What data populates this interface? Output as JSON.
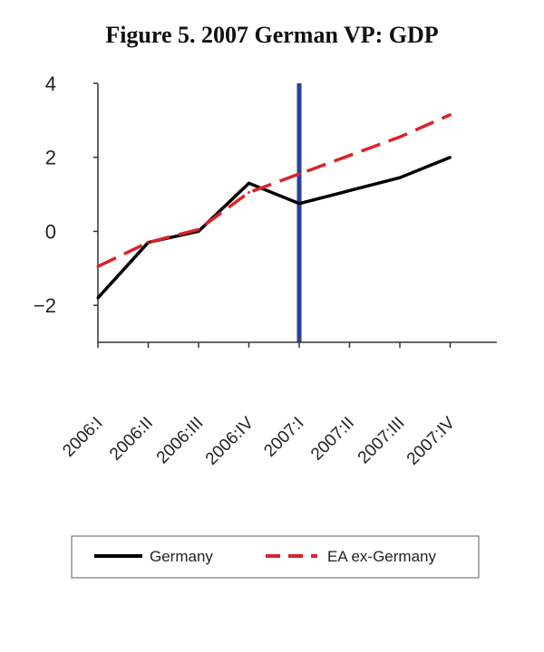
{
  "chart_data": {
    "type": "line",
    "title": "Figure 5. 2007 German VP: GDP",
    "categories": [
      "2006:I",
      "2006:II",
      "2006:III",
      "2006:IV",
      "2007:I",
      "2007:II",
      "2007:III",
      "2007:IV"
    ],
    "series": [
      {
        "name": "Germany",
        "values": [
          -1.8,
          -0.3,
          0.0,
          1.3,
          0.75,
          1.1,
          1.45,
          2.0
        ],
        "color": "#000000",
        "style": "solid"
      },
      {
        "name": "EA ex-Germany",
        "values": [
          -0.95,
          -0.3,
          0.05,
          1.05,
          1.55,
          2.05,
          2.55,
          3.15
        ],
        "color": "#d9232a",
        "style": "dashed"
      }
    ],
    "marker": {
      "category": "2007:I",
      "color": "#2a4294"
    },
    "ylim": [
      -3,
      4
    ],
    "yticks": [
      -2,
      0,
      2,
      4
    ],
    "ytick_labels": [
      "−2",
      "0",
      "2",
      "4"
    ],
    "grid": false,
    "legend_position": "bottom"
  }
}
